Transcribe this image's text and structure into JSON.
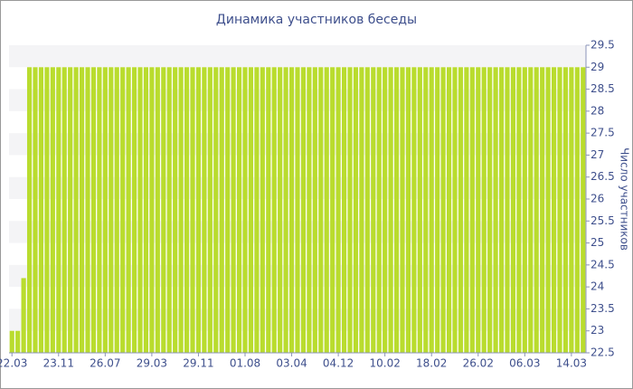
{
  "chart_data": {
    "type": "bar",
    "title": "Динамика участников беседы",
    "y_label": "Число участников",
    "categories": [
      "22.03",
      null,
      null,
      null,
      null,
      null,
      null,
      null,
      "23.11",
      null,
      null,
      null,
      null,
      null,
      null,
      null,
      "26.07",
      null,
      null,
      null,
      null,
      null,
      null,
      null,
      "29.03",
      null,
      null,
      null,
      null,
      null,
      null,
      null,
      "29.11",
      null,
      null,
      null,
      null,
      null,
      null,
      null,
      "01.08",
      null,
      null,
      null,
      null,
      null,
      null,
      null,
      "03.04",
      null,
      null,
      null,
      null,
      null,
      null,
      null,
      "04.12",
      null,
      null,
      null,
      null,
      null,
      null,
      null,
      "10.02",
      null,
      null,
      null,
      null,
      null,
      null,
      null,
      "18.02",
      null,
      null,
      null,
      null,
      null,
      null,
      null,
      "26.02",
      null,
      null,
      null,
      null,
      null,
      null,
      null,
      "06.03",
      null,
      null,
      null,
      null,
      null,
      null,
      null,
      "14.03",
      null,
      null
    ],
    "values": [
      23,
      23,
      24.2,
      29,
      29,
      29,
      29,
      29,
      29,
      29,
      29,
      29,
      29,
      29,
      29,
      29,
      29,
      29,
      29,
      29,
      29,
      29,
      29,
      29,
      29,
      29,
      29,
      29,
      29,
      29,
      29,
      29,
      29,
      29,
      29,
      29,
      29,
      29,
      29,
      29,
      29,
      29,
      29,
      29,
      29,
      29,
      29,
      29,
      29,
      29,
      29,
      29,
      29,
      29,
      29,
      29,
      29,
      29,
      29,
      29,
      29,
      29,
      29,
      29,
      29,
      29,
      29,
      29,
      29,
      29,
      29,
      29,
      29,
      29,
      29,
      29,
      29,
      29,
      29,
      29,
      29,
      29,
      29,
      29,
      29,
      29,
      29,
      29,
      29,
      29,
      29,
      29,
      29,
      29,
      29,
      29,
      29,
      29,
      29
    ],
    "color": "#b9dc2e",
    "ylim": [
      22.5,
      29.5
    ],
    "yticks": [
      22.5,
      23,
      23.5,
      24,
      24.5,
      25,
      25.5,
      26,
      26.5,
      27,
      27.5,
      28,
      28.5,
      29,
      29.5
    ],
    "grid": true
  }
}
